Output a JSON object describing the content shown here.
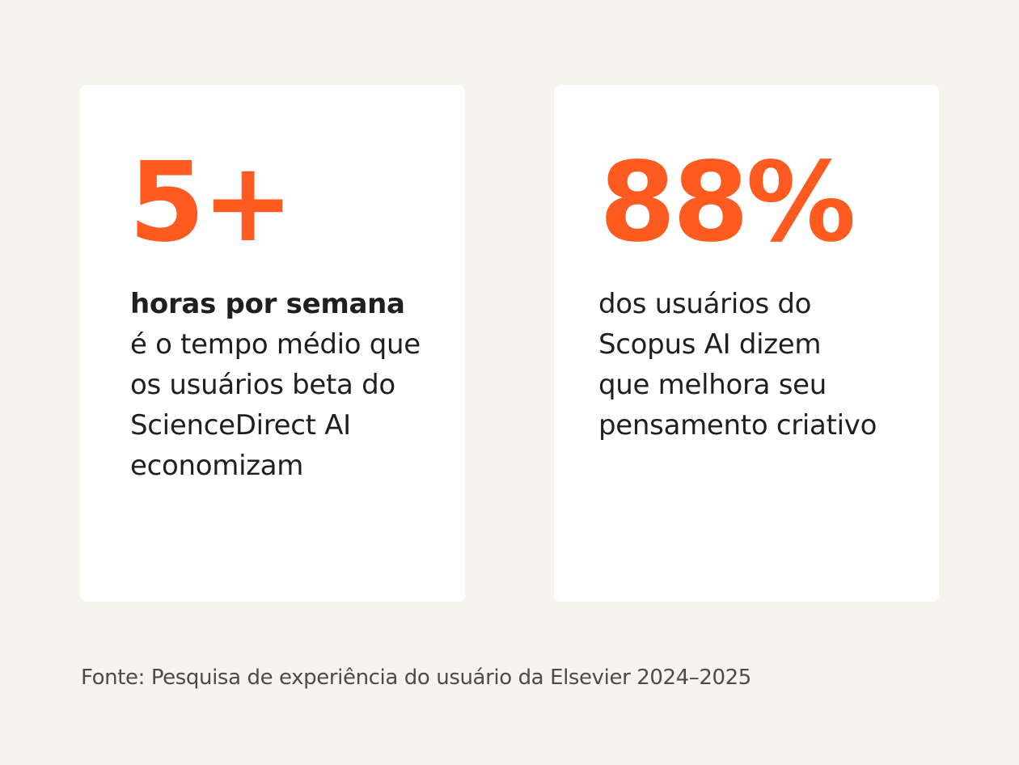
{
  "colors": {
    "background": "#f7f4ee",
    "card": "#ffffff",
    "accent": "#ff5a1f",
    "text": "#1f1f1f",
    "source_text": "#4f4a45"
  },
  "cards": [
    {
      "stat": "5+",
      "highlight": "horas por semana",
      "lines": [
        "é o tempo médio que",
        "os usuários beta do",
        "ScienceDirect AI",
        "economizam"
      ]
    },
    {
      "stat": "88%",
      "highlight": "",
      "lines": [
        "dos usuários do",
        "Scopus AI dizem",
        "que melhora seu",
        "pensamento criativo"
      ]
    }
  ],
  "source": "Fonte: Pesquisa de experiência do usuário da Elsevier 2024–2025"
}
